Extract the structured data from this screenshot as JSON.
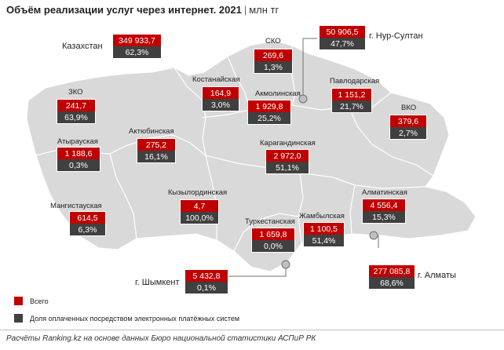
{
  "title": {
    "main": "Объём реализации услуг через интернет. 2021",
    "separator": "|",
    "unit": "млн тг"
  },
  "regions": [
    {
      "id": "kazakhstan",
      "label": "Казахстан",
      "total": "349 933,7",
      "share": "62,3%"
    },
    {
      "id": "sko",
      "label": "СКО",
      "total": "269,6",
      "share": "1,3%"
    },
    {
      "id": "nur-sultan",
      "label": "г. Нур-Султан",
      "total": "50 906,5",
      "share": "47,7%"
    },
    {
      "id": "kostanay",
      "label": "Костанайская",
      "total": "164,9",
      "share": "3,0%"
    },
    {
      "id": "akmola",
      "label": "Акмолинская",
      "total": "1 929,8",
      "share": "25,2%"
    },
    {
      "id": "pavlodar",
      "label": "Павлодарская",
      "total": "1 151,2",
      "share": "21,7%"
    },
    {
      "id": "zko",
      "label": "ЗКО",
      "total": "241,7",
      "share": "63,9%"
    },
    {
      "id": "vko",
      "label": "ВКО",
      "total": "379,6",
      "share": "2,7%"
    },
    {
      "id": "atyrau",
      "label": "Атырауская",
      "total": "1 188,6",
      "share": "0,3%"
    },
    {
      "id": "aktobe",
      "label": "Актюбинская",
      "total": "275,2",
      "share": "16,1%"
    },
    {
      "id": "karaganda",
      "label": "Карагандинская",
      "total": "2 972,0",
      "share": "51,1%"
    },
    {
      "id": "kyzylorda",
      "label": "Кызылординская",
      "total": "4,7",
      "share": "100,0%"
    },
    {
      "id": "mangystau",
      "label": "Мангистауская",
      "total": "614,5",
      "share": "6,3%"
    },
    {
      "id": "almaty-region",
      "label": "Алматинская",
      "total": "4 556,4",
      "share": "15,3%"
    },
    {
      "id": "turkestan",
      "label": "Туркестанская",
      "total": "1 659,8",
      "share": "0,0%"
    },
    {
      "id": "zhambyl",
      "label": "Жамбылская",
      "total": "1 100,5",
      "share": "51,4%"
    },
    {
      "id": "shymkent",
      "label": "г. Шымкент",
      "total": "5 432,8",
      "share": "0,1%"
    },
    {
      "id": "almaty-city",
      "label": "г. Алматы",
      "total": "277 085,8",
      "share": "68,6%"
    }
  ],
  "legend": [
    {
      "label": "Всего",
      "color": "#c00000"
    },
    {
      "label": "Доля оплаченных посредством электронных платёжных систем",
      "color": "#404040"
    }
  ],
  "footer": "Расчёты Ranking.kz на основе данных Бюро национальной статистики АСПиР РК",
  "colors": {
    "map_fill": "#d9d9d9",
    "border": "#ffffff",
    "total": "#c00000",
    "share": "#404040"
  }
}
